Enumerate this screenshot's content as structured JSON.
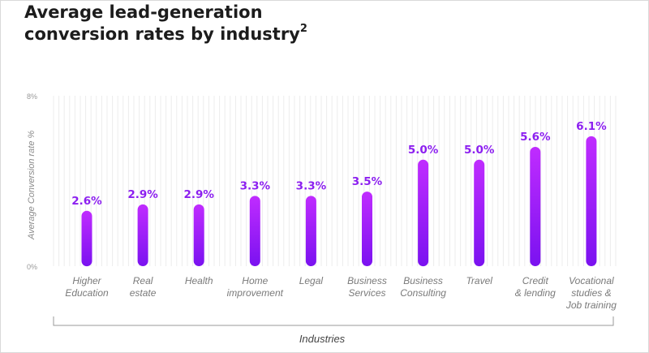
{
  "header": {
    "title_line1": "Average lead-generation",
    "title_line2": "conversion rates by industry",
    "title_footnote": "2"
  },
  "chart_data": {
    "type": "bar",
    "title": "Average lead-generation conversion rates by industry",
    "xlabel": "Industries",
    "ylabel": "Average Conversion rate %",
    "ylim": [
      0,
      8
    ],
    "y_tick_labels": [
      "0%",
      "8%"
    ],
    "grid": true,
    "categories": [
      [
        "Higher",
        "Education"
      ],
      [
        "Real",
        "estate"
      ],
      [
        "Health"
      ],
      [
        "Home",
        "improvement"
      ],
      [
        "Legal"
      ],
      [
        "Business",
        "Services"
      ],
      [
        "Business",
        "Consulting"
      ],
      [
        "Travel"
      ],
      [
        "Credit",
        "& lending"
      ],
      [
        "Vocational",
        "studies &",
        "Job training"
      ]
    ],
    "values": [
      2.6,
      2.9,
      2.9,
      3.3,
      3.3,
      3.5,
      5.0,
      5.0,
      5.6,
      6.1
    ],
    "value_labels": [
      "2.6%",
      "2.9%",
      "2.9%",
      "3.3%",
      "3.3%",
      "3.5%",
      "5.0%",
      "5.0%",
      "5.6%",
      "6.1%"
    ],
    "colors": {
      "bar_top": "#c02cff",
      "bar_bottom": "#7a12f0",
      "label": "#8c1ff0",
      "grid": "#ececec"
    }
  }
}
